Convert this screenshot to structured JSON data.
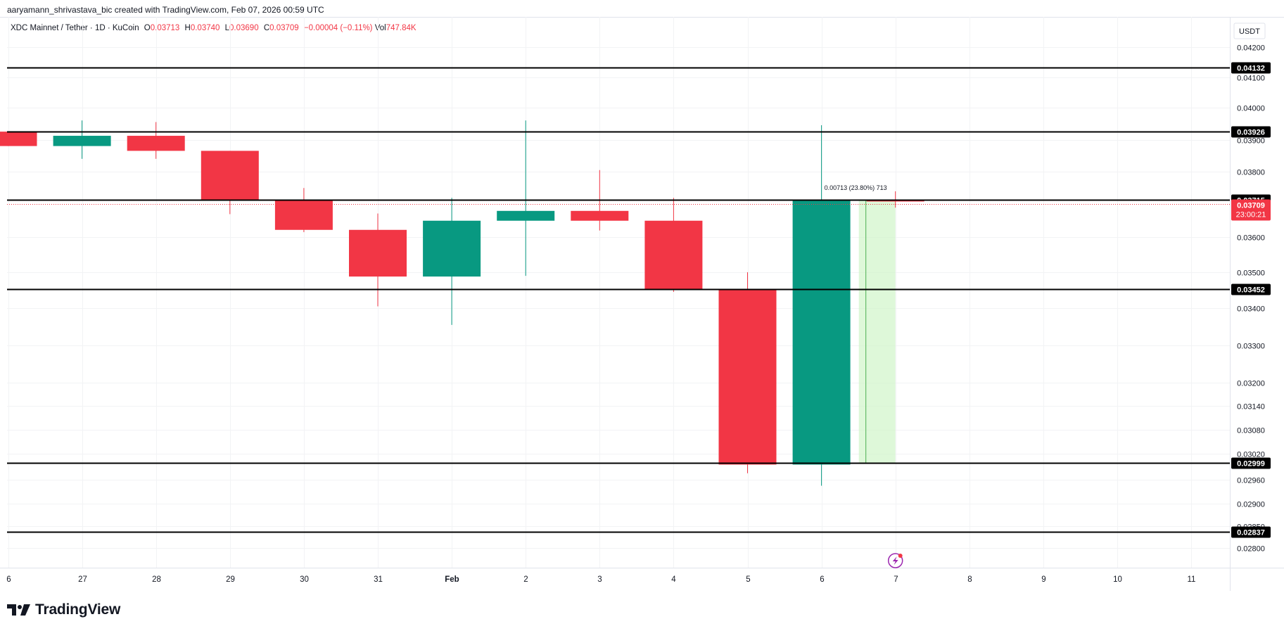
{
  "credit": "aaryamann_shrivastava_bic created with TradingView.com, Feb 07, 2026 00:59 UTC",
  "legend": {
    "symbol": "XDC Mainnet / Tether · 1D · KuCoin",
    "o_label": "O",
    "o_value": "0.03713",
    "h_label": "H",
    "h_value": "0.03740",
    "l_label": "L",
    "l_value": "0.03690",
    "c_label": "C",
    "c_value": "0.03709",
    "change": "−0.00004 (−0.11%)",
    "vol_label": "Vol",
    "vol_value": "747.84K"
  },
  "brand": "TradingView",
  "colors": {
    "up": "#089981",
    "down": "#f23645",
    "level_line": "#000000",
    "range_fill": "#ccf5c4",
    "range_line": "#4caf50",
    "grid": "#f2f3f5"
  },
  "chart_data": {
    "type": "candlestick",
    "currency": "USDT",
    "y_ticks": [
      "0.04200",
      "0.04100",
      "0.04000",
      "0.03900",
      "0.03800",
      "0.03600",
      "0.03500",
      "0.03400",
      "0.03300",
      "0.03200",
      "0.03140",
      "0.03080",
      "0.03020",
      "0.02960",
      "0.02900",
      "0.02850",
      "0.02800"
    ],
    "x_ticks": [
      "6",
      "27",
      "28",
      "29",
      "30",
      "31",
      "Feb",
      "2",
      "3",
      "4",
      "5",
      "6",
      "7",
      "8",
      "9",
      "10",
      "11"
    ],
    "candles": [
      {
        "date": "26",
        "open": 0.03925,
        "high": 0.03925,
        "low": 0.0388,
        "close": 0.0388
      },
      {
        "date": "27",
        "open": 0.0388,
        "high": 0.0396,
        "low": 0.0384,
        "close": 0.03912
      },
      {
        "date": "28",
        "open": 0.03912,
        "high": 0.03955,
        "low": 0.0384,
        "close": 0.03865
      },
      {
        "date": "29",
        "open": 0.03865,
        "high": 0.03865,
        "low": 0.0367,
        "close": 0.03715
      },
      {
        "date": "30",
        "open": 0.03715,
        "high": 0.0375,
        "low": 0.03615,
        "close": 0.03622
      },
      {
        "date": "31",
        "open": 0.03622,
        "high": 0.03672,
        "low": 0.03405,
        "close": 0.03488
      },
      {
        "date": "Feb",
        "open": 0.03488,
        "high": 0.0372,
        "low": 0.03355,
        "close": 0.0365
      },
      {
        "date": "2",
        "open": 0.0365,
        "high": 0.0396,
        "low": 0.0349,
        "close": 0.0368
      },
      {
        "date": "3",
        "open": 0.0368,
        "high": 0.03805,
        "low": 0.0362,
        "close": 0.0365
      },
      {
        "date": "4",
        "open": 0.0365,
        "high": 0.0372,
        "low": 0.03445,
        "close": 0.03452
      },
      {
        "date": "5",
        "open": 0.03452,
        "high": 0.035,
        "low": 0.02975,
        "close": 0.02995
      },
      {
        "date": "6",
        "open": 0.02995,
        "high": 0.03945,
        "low": 0.02945,
        "close": 0.03713
      },
      {
        "date": "7",
        "open": 0.03713,
        "high": 0.0374,
        "low": 0.0369,
        "close": 0.03709
      }
    ],
    "level_lines": [
      "0.04132",
      "0.03926",
      "0.03715",
      "0.03452",
      "0.02999",
      "0.02837"
    ],
    "current_price": {
      "value": "0.03709",
      "countdown": "23:00:21"
    },
    "measure": {
      "label": "0.00713 (23.80%) 713",
      "from": 0.02999,
      "to": 0.03712
    }
  }
}
